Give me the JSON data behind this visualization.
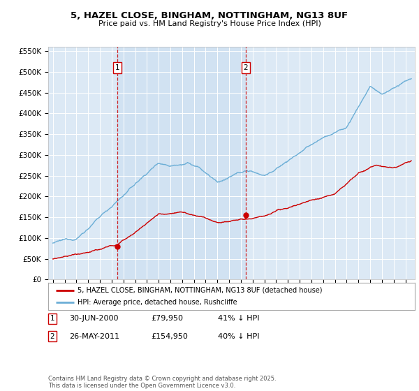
{
  "title_line1": "5, HAZEL CLOSE, BINGHAM, NOTTINGHAM, NG13 8UF",
  "title_line2": "Price paid vs. HM Land Registry's House Price Index (HPI)",
  "background_color": "#dce9f5",
  "fig_bg_color": "#ffffff",
  "legend_label_red": "5, HAZEL CLOSE, BINGHAM, NOTTINGHAM, NG13 8UF (detached house)",
  "legend_label_blue": "HPI: Average price, detached house, Rushcliffe",
  "marker1_year": 2000.5,
  "marker1_price": 79950,
  "marker2_year": 2011.42,
  "marker2_price": 154950,
  "red_color": "#cc0000",
  "blue_color": "#6baed6",
  "ylim": [
    0,
    560000
  ],
  "yticks": [
    0,
    50000,
    100000,
    150000,
    200000,
    250000,
    300000,
    350000,
    400000,
    450000,
    500000,
    550000
  ],
  "xlim_start": 1994.6,
  "xlim_end": 2025.8,
  "copyright_text": "Contains HM Land Registry data © Crown copyright and database right 2025.\nThis data is licensed under the Open Government Licence v3.0."
}
